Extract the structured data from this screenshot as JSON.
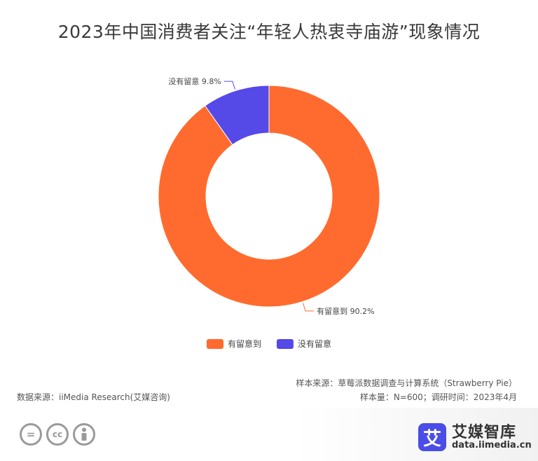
{
  "title": "2023年中国消费者关注“年轻人热衷寺庙游”现象情况",
  "chart_data": {
    "type": "pie",
    "donut": true,
    "categories": [
      "有留意到",
      "没有留意"
    ],
    "values": [
      90.2,
      9.8
    ],
    "unit": "%",
    "data_labels": [
      "有留意到 90.2%",
      "没有留意 9.8%"
    ],
    "colors": [
      "#ff6b2e",
      "#5549e8"
    ],
    "legend_position": "bottom"
  },
  "footer": {
    "sample_source": "样本来源：草莓派数据调查与计算系统（Strawberry Pie）",
    "sample_size": "样本量：N=600；调研时间：2023年4月",
    "data_source": "数据来源：iiMedia Research(艾媒咨询)"
  },
  "brand": {
    "logo_char": "艾",
    "name": "艾媒智库",
    "url": "data.iimedia.cn"
  },
  "license_icons": [
    "equals-icon",
    "cc-icon",
    "person-icon"
  ],
  "license_glyphs": [
    "=",
    "cc",
    ""
  ]
}
